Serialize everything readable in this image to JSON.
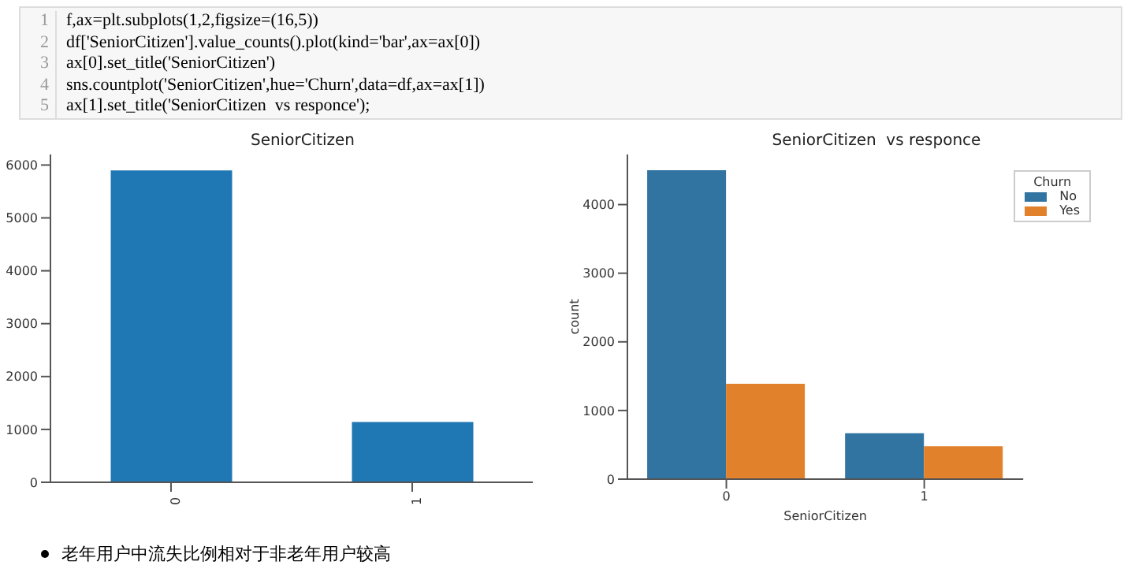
{
  "chart_data": [
    {
      "type": "bar",
      "title": "SeniorCitizen",
      "categories": [
        "0",
        "1"
      ],
      "values": [
        5900,
        1140
      ],
      "color": "#1f77b4",
      "ylim": [
        0,
        6200
      ],
      "yticks": [
        0,
        1000,
        2000,
        3000,
        4000,
        5000,
        6000
      ],
      "legend": false,
      "annotations": [
        "1 f,ax=plt.subplots(1,2,figsize=(16,5))",
        "2 df['SeniorCitizen'].value_counts().plot(kind='bar',ax=ax[0])",
        "3 ax[0].set_title('SeniorCitizen')",
        "4 sns.countplot('SeniorCitizen',hue='Churn',data=df,ax=ax[1])",
        "5 ax[1].set_title('SeniorCitizen  vs responce');"
      ]
    },
    {
      "type": "bar",
      "title": "SeniorCitizen  vs responce",
      "xlabel": "SeniorCitizen",
      "ylabel": "count",
      "legend_title": "Churn",
      "categories": [
        "0",
        "1"
      ],
      "series": [
        {
          "name": "No",
          "color": "#3274a1",
          "values": [
            4500,
            670
          ]
        },
        {
          "name": "Yes",
          "color": "#e1812c",
          "values": [
            1390,
            480
          ]
        }
      ],
      "ylim": [
        0,
        4730
      ],
      "yticks": [
        0,
        1000,
        2000,
        3000,
        4000
      ],
      "legend": "top right",
      "annotations": [
        "老年用户中流失比例相对于非老年用户较高"
      ]
    }
  ]
}
